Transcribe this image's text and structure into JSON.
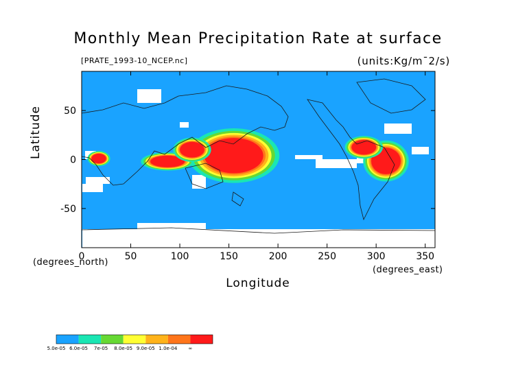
{
  "chart_data": {
    "type": "heatmap",
    "title": "Monthly Mean Precipitation Rate at surface",
    "source": "[PRATE_1993-10_NCEP.nc]",
    "units": "(units:Kg/m¯2/s)",
    "xlabel": "Longitude",
    "ylabel": "Latitude",
    "xnote": "(degrees_north)",
    "xnote2": "(degrees_east)",
    "xlim": [
      0,
      360
    ],
    "ylim": [
      -90,
      90
    ],
    "xticks": [
      0,
      50,
      100,
      150,
      200,
      250,
      300,
      350
    ],
    "yticks": [
      -50,
      0,
      50
    ],
    "background_level": "5.0e-05",
    "colorbar": {
      "labels": [
        "5.0e-05",
        "6.0e-05",
        "7e-05",
        "8.0e-05",
        "9.0e-05",
        "1.0e-04",
        "∞"
      ],
      "colors": [
        "#1aa3ff",
        "#1ae6b3",
        "#66d933",
        "#ffff33",
        "#ffb31a",
        "#ff751a",
        "#ff1a1a"
      ]
    },
    "regions": [
      {
        "level": "1.0e-04",
        "lon": [
          125,
          185
        ],
        "lat": [
          -14,
          22
        ]
      },
      {
        "level": "1.0e-04",
        "lon": [
          70,
          105
        ],
        "lat": [
          -8,
          4
        ]
      },
      {
        "level": "1.0e-04",
        "lon": [
          100,
          125
        ],
        "lat": [
          2,
          18
        ]
      },
      {
        "level": "1.0e-04",
        "lon": [
          295,
          325
        ],
        "lat": [
          -15,
          12
        ]
      },
      {
        "level": "1.0e-04",
        "lon": [
          275,
          300
        ],
        "lat": [
          5,
          20
        ]
      },
      {
        "level": "1.0e-04",
        "lon": [
          10,
          25
        ],
        "lat": [
          -4,
          6
        ]
      }
    ],
    "grid": false,
    "legend": "bottom-left"
  }
}
